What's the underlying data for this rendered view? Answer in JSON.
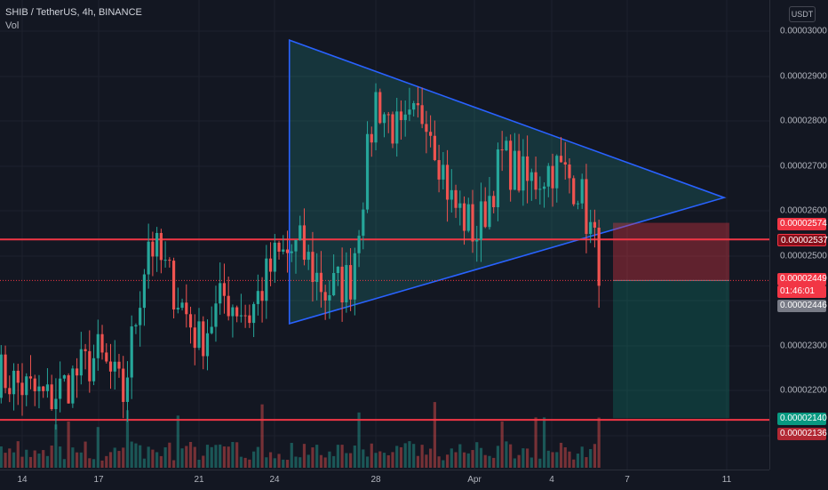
{
  "legend": {
    "symbol_line": "SHIB / TetherUS, 4h, BINANCE",
    "volume_label": "Vol"
  },
  "currency_button": "USDT",
  "price_axis": {
    "ticks": [
      "0.00003000",
      "0.00002900",
      "0.00002800",
      "0.00002700",
      "0.00002600",
      "0.00002500",
      "0.00002300",
      "0.00002200"
    ]
  },
  "time_axis": {
    "ticks": [
      "14",
      "17",
      "21",
      "24",
      "28",
      "Apr",
      "4",
      "7",
      "11"
    ]
  },
  "price_labels": {
    "target_top": "0.00002574",
    "resistance_line": "0.00002537",
    "last_price": "0.00002449",
    "countdown": "01:46:01",
    "entry": "0.00002446",
    "stop_line_green": "0.00002140",
    "support_line": "0.00002136"
  },
  "colors": {
    "background": "#131722",
    "up": "#26a69a",
    "down": "#ef5350",
    "line_red": "#f23645",
    "triangle_stroke": "#2962ff",
    "triangle_fill": "#26a69a"
  },
  "chart_data": {
    "type": "candlestick",
    "symbol": "SHIB / TetherUS",
    "interval": "4h",
    "exchange": "BINANCE",
    "ylim": [
      1.95e-05,
      3.1e-05
    ],
    "horizontal_lines": [
      2.537e-05,
      2.136e-05
    ],
    "triangle": {
      "apex_left_top": {
        "x": "Mar 25",
        "y": 2.98e-05
      },
      "apex_left_bottom": {
        "x": "Mar 25",
        "y": 2.35e-05
      },
      "apex_right": {
        "x": "Apr 11",
        "y": 2.63e-05
      }
    },
    "position": {
      "entry": 2.446e-05,
      "stop": 2.574e-05,
      "target": 2.14e-05
    },
    "anchors": [
      {
        "t": "Mar 13",
        "price": 2.24e-05
      },
      {
        "t": "Mar 15",
        "price": 2.18e-05
      },
      {
        "t": "Mar 17",
        "price": 2.28e-05
      },
      {
        "t": "Mar 18",
        "price": 2.19e-05
      },
      {
        "t": "Mar 19",
        "price": 2.54e-05
      },
      {
        "t": "Mar 20",
        "price": 2.43e-05
      },
      {
        "t": "Mar 21",
        "price": 2.31e-05
      },
      {
        "t": "Mar 22",
        "price": 2.41e-05
      },
      {
        "t": "Mar 23",
        "price": 2.37e-05
      },
      {
        "t": "Mar 24",
        "price": 2.49e-05
      },
      {
        "t": "Mar 25",
        "price": 2.52e-05
      },
      {
        "t": "Mar 26",
        "price": 2.42e-05
      },
      {
        "t": "Mar 27",
        "price": 2.45e-05
      },
      {
        "t": "Mar 28",
        "price": 2.85e-05
      },
      {
        "t": "Mar 29",
        "price": 2.76e-05
      },
      {
        "t": "Mar 30",
        "price": 2.83e-05
      },
      {
        "t": "Mar 31",
        "price": 2.62e-05
      },
      {
        "t": "Apr 1",
        "price": 2.55e-05
      },
      {
        "t": "Apr 2",
        "price": 2.72e-05
      },
      {
        "t": "Apr 3",
        "price": 2.66e-05
      },
      {
        "t": "Apr 4",
        "price": 2.7e-05
      },
      {
        "t": "Apr 5",
        "price": 2.66e-05
      },
      {
        "t": "Apr 6",
        "price": 2.45e-05
      }
    ]
  }
}
